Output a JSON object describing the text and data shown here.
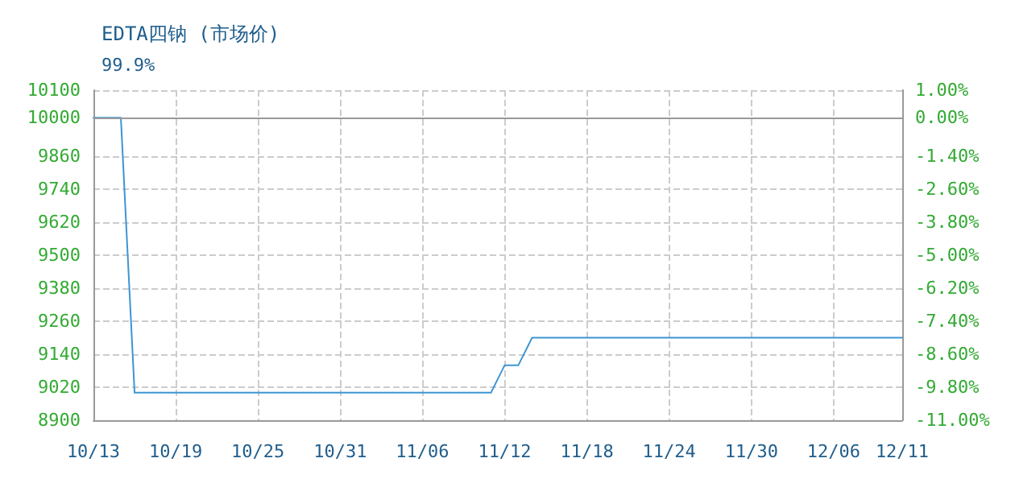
{
  "chart_data": {
    "type": "line",
    "title": "EDTA四钠 (市场价)",
    "subtitle": "99.9%",
    "x": [
      "--10-13",
      "--10-15",
      "--10-16",
      "--11-11",
      "--11-12",
      "--11-13",
      "--11-14",
      "--12-11"
    ],
    "series": [
      {
        "color": "#3d95d4",
        "values": [
          10000,
          10000,
          9000,
          9000,
          9100,
          9100,
          9200,
          9200
        ]
      }
    ],
    "xlim": [
      "--10-13",
      "--12-11"
    ],
    "xticks": [
      {
        "value": "--10-13",
        "label": "10/13"
      },
      {
        "value": "--10-19",
        "label": "10/19"
      },
      {
        "value": "--10-25",
        "label": "10/25"
      },
      {
        "value": "--10-31",
        "label": "10/31"
      },
      {
        "value": "--11-06",
        "label": "11/06"
      },
      {
        "value": "--11-12",
        "label": "11/12"
      },
      {
        "value": "--11-18",
        "label": "11/18"
      },
      {
        "value": "--11-24",
        "label": "11/24"
      },
      {
        "value": "--11-30",
        "label": "11/30"
      },
      {
        "value": "--12-06",
        "label": "12/06"
      },
      {
        "value": "--12-11",
        "label": "12/11"
      }
    ],
    "ylim": [
      8900,
      10100
    ],
    "yticks": [
      8900,
      9020,
      9140,
      9260,
      9380,
      9500,
      9620,
      9740,
      9860,
      10000,
      10100
    ],
    "y2lim": [
      -11,
      1
    ],
    "y2ticks": [
      {
        "value": -11,
        "label": "-11.00%"
      },
      {
        "value": -9.8,
        "label": "-9.80%"
      },
      {
        "value": -8.6,
        "label": "-8.60%"
      },
      {
        "value": -7.4,
        "label": "-7.40%"
      },
      {
        "value": -6.2,
        "label": "-6.20%"
      },
      {
        "value": -5,
        "label": "-5.00%"
      },
      {
        "value": -3.8,
        "label": "-3.80%"
      },
      {
        "value": -2.6,
        "label": "-2.60%"
      },
      {
        "value": -1.4,
        "label": "-1.40%"
      },
      {
        "value": 0,
        "label": "0.00%"
      },
      {
        "value": 1,
        "label": "1.00%"
      }
    ],
    "ref_lines": [
      {
        "axis": "y2",
        "value": 0,
        "color": "#999999"
      }
    ],
    "grid": true,
    "marker": "none",
    "line_style": "solid"
  }
}
